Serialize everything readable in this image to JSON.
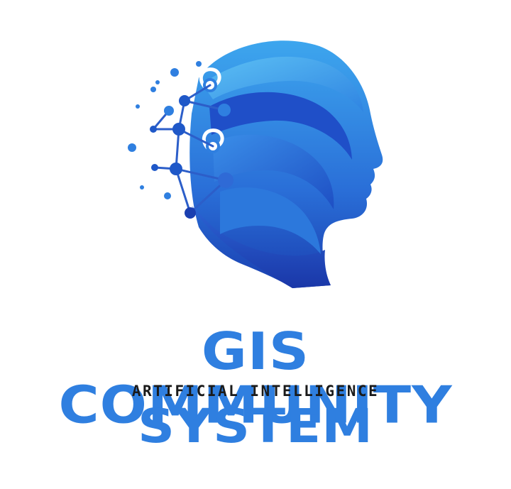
{
  "logo": {
    "emblem_icon": "ai-head-network-icon",
    "title_main": "GIS COMMUNITY",
    "subtitle": "ARTIFICIAL INTELLIGENCE",
    "title_bottom": "SYSTEM"
  },
  "colors": {
    "primary_blue": "#2f7fe0",
    "deep_blue": "#1b3fb3",
    "light_blue": "#53b6f0",
    "text_dark": "#1a1a1a",
    "background": "#ffffff"
  }
}
